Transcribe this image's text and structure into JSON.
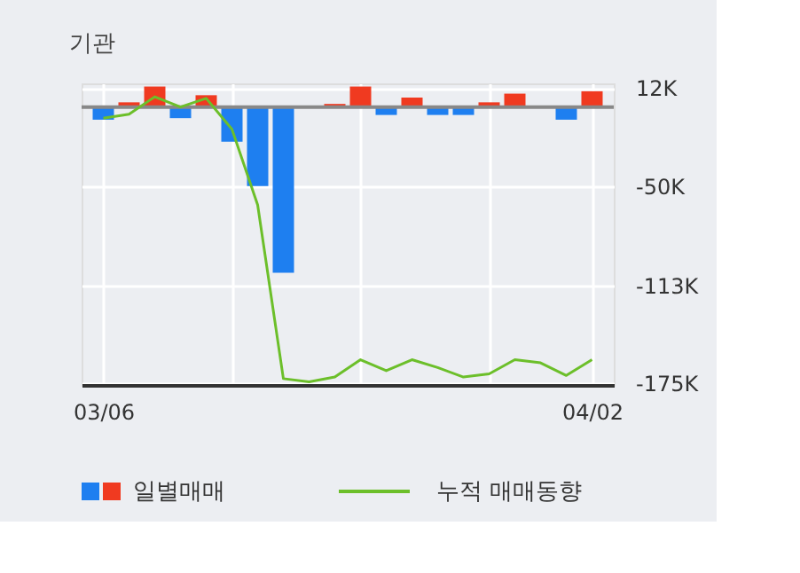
{
  "chart_data": {
    "type": "bar",
    "title": "기관",
    "categories": [
      "03/06",
      null,
      null,
      null,
      null,
      null,
      null,
      null,
      null,
      null,
      null,
      null,
      null,
      null,
      null,
      null,
      null,
      null,
      null,
      "04/02"
    ],
    "series": [
      {
        "name": "일별매매",
        "color": "#1e7ff0",
        "colors": [
          "#1e7ff0",
          "#f03a20",
          "#f03a20",
          "#1e7ff0",
          "#f03a20",
          "#1e7ff0",
          "#1e7ff0",
          "#1e7ff0",
          "#f03a20",
          "#f03a20",
          "#f03a20",
          "#1e7ff0",
          "#f03a20",
          "#1e7ff0",
          "#1e7ff0",
          "#f03a20",
          "#f03a20",
          "#f03a20",
          "#1e7ff0",
          "#f03a20"
        ],
        "values": [
          -8,
          3,
          13,
          -7,
          7.5,
          -22,
          -50,
          -105,
          0,
          2,
          13,
          -5,
          6,
          -5,
          -5,
          3,
          8.5,
          0,
          -8,
          10
        ]
      },
      {
        "name": "누적 매매동향",
        "type": "line",
        "color": "#6cbf2a",
        "values": [
          -7,
          -4.5,
          6.5,
          0,
          5.5,
          -14,
          -62,
          -172,
          -174,
          -171,
          -160,
          -167,
          -160,
          -165,
          -171,
          -169,
          -160,
          -162,
          -170,
          -160
        ]
      }
    ],
    "ylim": [
      -176,
      15
    ],
    "yticks": [
      {
        "value": 12,
        "label": "12K"
      },
      {
        "value": -50,
        "label": "-50K"
      },
      {
        "value": -113,
        "label": "-113K"
      },
      {
        "value": -175,
        "label": "-175K"
      }
    ],
    "ref_lines": [
      {
        "axis": "y",
        "value": 0,
        "color": "#888888"
      }
    ],
    "grid": true,
    "legend": "bottom"
  }
}
